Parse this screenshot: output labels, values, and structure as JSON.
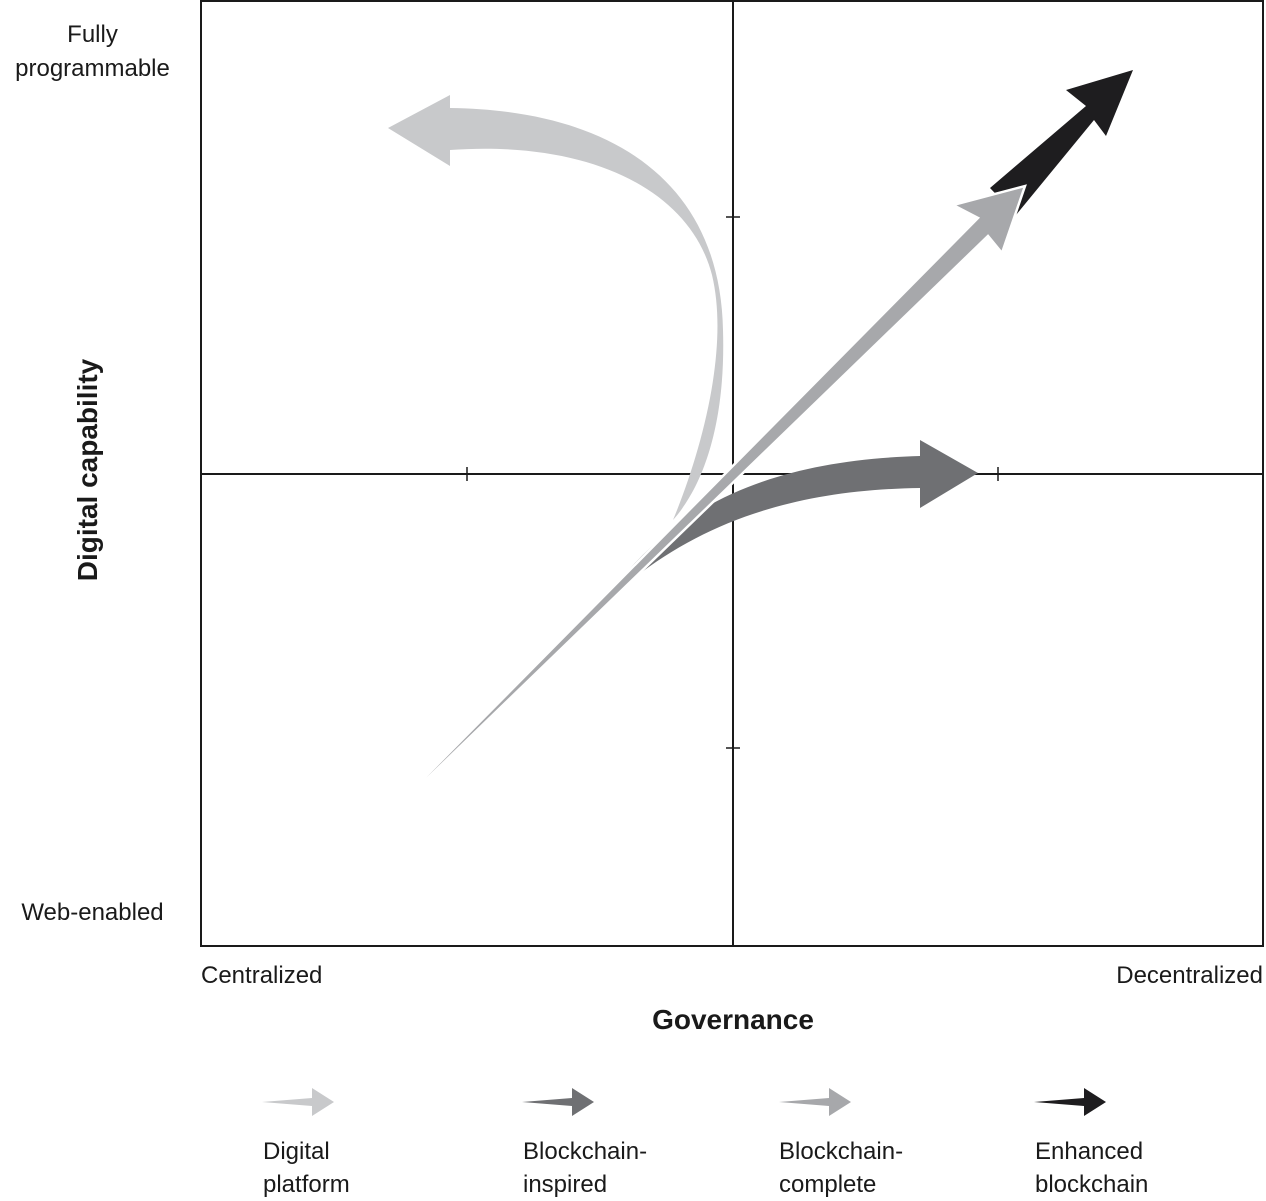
{
  "diagram": {
    "y_axis": {
      "title": "Digital capability",
      "top_label_line1": "Fully",
      "top_label_line2": "programmable",
      "bottom_label": "Web-enabled"
    },
    "x_axis": {
      "title": "Governance",
      "left_label": "Centralized",
      "right_label": "Decentralized"
    },
    "legend": [
      {
        "line1": "Digital",
        "line2": "platform",
        "color": "#c8c9cb"
      },
      {
        "line1": "Blockchain-",
        "line2": "inspired",
        "color": "#6f7073"
      },
      {
        "line1": "Blockchain-",
        "line2": "complete",
        "color": "#a7a8ab"
      },
      {
        "line1": "Enhanced",
        "line2": "blockchain",
        "color": "#1e1d1f"
      }
    ]
  }
}
